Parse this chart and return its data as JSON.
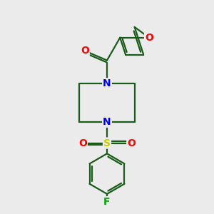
{
  "bg_color": "#ebebeb",
  "atom_colors": {
    "C": "#1a5c1a",
    "N": "#0000ff",
    "O": "#ff0000",
    "S": "#cccc00",
    "F": "#00aa00"
  },
  "bond_color": "#1a5c1a",
  "bond_width": 1.6,
  "font_size_atom": 10
}
